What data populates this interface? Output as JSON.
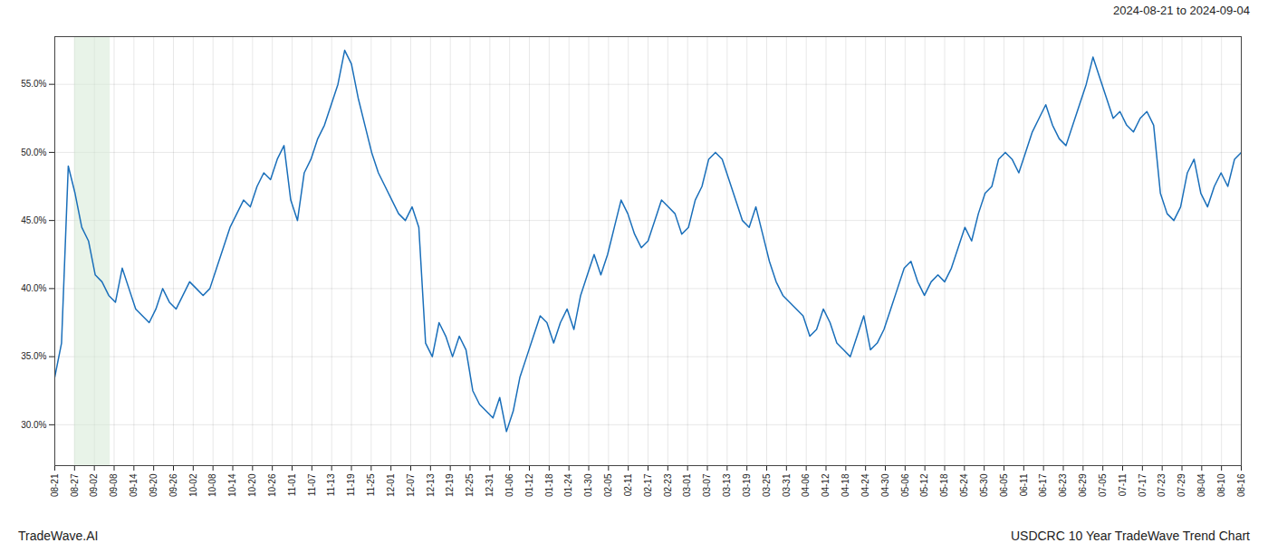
{
  "chart_data": {
    "type": "line",
    "title": "USDCRC 10 Year TradeWave Trend Chart",
    "subtitle": "2024-08-21 to 2024-09-04",
    "annotations": [
      "TradeWave.AI"
    ],
    "color": "#1a6fba",
    "grid": true,
    "xlim": [
      0,
      60
    ],
    "xticks": [
      {
        "value": 0,
        "label": "08-21"
      },
      {
        "value": 1,
        "label": "08-27"
      },
      {
        "value": 2,
        "label": "09-02"
      },
      {
        "value": 3,
        "label": "09-08"
      },
      {
        "value": 4,
        "label": "09-14"
      },
      {
        "value": 5,
        "label": "09-20"
      },
      {
        "value": 6,
        "label": "09-26"
      },
      {
        "value": 7,
        "label": "10-02"
      },
      {
        "value": 8,
        "label": "10-08"
      },
      {
        "value": 9,
        "label": "10-14"
      },
      {
        "value": 10,
        "label": "10-20"
      },
      {
        "value": 11,
        "label": "10-26"
      },
      {
        "value": 12,
        "label": "11-01"
      },
      {
        "value": 13,
        "label": "11-07"
      },
      {
        "value": 14,
        "label": "11-13"
      },
      {
        "value": 15,
        "label": "11-19"
      },
      {
        "value": 16,
        "label": "11-25"
      },
      {
        "value": 17,
        "label": "12-01"
      },
      {
        "value": 18,
        "label": "12-07"
      },
      {
        "value": 19,
        "label": "12-13"
      },
      {
        "value": 20,
        "label": "12-19"
      },
      {
        "value": 21,
        "label": "12-25"
      },
      {
        "value": 22,
        "label": "12-31"
      },
      {
        "value": 23,
        "label": "01-06"
      },
      {
        "value": 24,
        "label": "01-12"
      },
      {
        "value": 25,
        "label": "01-18"
      },
      {
        "value": 26,
        "label": "01-24"
      },
      {
        "value": 27,
        "label": "01-30"
      },
      {
        "value": 28,
        "label": "02-05"
      },
      {
        "value": 29,
        "label": "02-11"
      },
      {
        "value": 30,
        "label": "02-17"
      },
      {
        "value": 31,
        "label": "02-23"
      },
      {
        "value": 32,
        "label": "03-01"
      },
      {
        "value": 33,
        "label": "03-07"
      },
      {
        "value": 34,
        "label": "03-13"
      },
      {
        "value": 35,
        "label": "03-19"
      },
      {
        "value": 36,
        "label": "03-25"
      },
      {
        "value": 37,
        "label": "03-31"
      },
      {
        "value": 38,
        "label": "04-06"
      },
      {
        "value": 39,
        "label": "04-12"
      },
      {
        "value": 40,
        "label": "04-18"
      },
      {
        "value": 41,
        "label": "04-24"
      },
      {
        "value": 42,
        "label": "04-30"
      },
      {
        "value": 43,
        "label": "05-06"
      },
      {
        "value": 44,
        "label": "05-12"
      },
      {
        "value": 45,
        "label": "05-18"
      },
      {
        "value": 46,
        "label": "05-24"
      },
      {
        "value": 47,
        "label": "05-30"
      },
      {
        "value": 48,
        "label": "06-05"
      },
      {
        "value": 49,
        "label": "06-11"
      },
      {
        "value": 50,
        "label": "06-17"
      },
      {
        "value": 51,
        "label": "06-23"
      },
      {
        "value": 52,
        "label": "06-29"
      },
      {
        "value": 53,
        "label": "07-05"
      },
      {
        "value": 54,
        "label": "07-11"
      },
      {
        "value": 55,
        "label": "07-17"
      },
      {
        "value": 56,
        "label": "07-23"
      },
      {
        "value": 57,
        "label": "07-29"
      },
      {
        "value": 58,
        "label": "08-04"
      },
      {
        "value": 59,
        "label": "08-10"
      },
      {
        "value": 60,
        "label": "08-16"
      }
    ],
    "ylim": [
      27.0,
      58.5
    ],
    "yticks": [
      {
        "value": 30.0,
        "label": "30.0%"
      },
      {
        "value": 35.0,
        "label": "35.0%"
      },
      {
        "value": 40.0,
        "label": "40.0%"
      },
      {
        "value": 45.0,
        "label": "45.0%"
      },
      {
        "value": 50.0,
        "label": "50.0%"
      },
      {
        "value": 55.0,
        "label": "55.0%"
      }
    ],
    "highlight": {
      "start": 1,
      "end": 2.8,
      "color": "#d6ead6"
    },
    "values": [
      33.5,
      36.0,
      49.0,
      47.0,
      44.5,
      43.5,
      41.0,
      40.5,
      39.5,
      39.0,
      41.5,
      40.0,
      38.5,
      38.0,
      37.5,
      38.5,
      40.0,
      39.0,
      38.5,
      39.5,
      40.5,
      40.0,
      39.5,
      40.0,
      41.5,
      43.0,
      44.5,
      45.5,
      46.5,
      46.0,
      47.5,
      48.5,
      48.0,
      49.5,
      50.5,
      46.5,
      45.0,
      48.5,
      49.5,
      51.0,
      52.0,
      53.5,
      55.0,
      57.5,
      56.5,
      54.0,
      52.0,
      50.0,
      48.5,
      47.5,
      46.5,
      45.5,
      45.0,
      46.0,
      44.5,
      36.0,
      35.0,
      37.5,
      36.5,
      35.0,
      36.5,
      35.5,
      32.5,
      31.5,
      31.0,
      30.5,
      32.0,
      29.5,
      31.0,
      33.5,
      35.0,
      36.5,
      38.0,
      37.5,
      36.0,
      37.5,
      38.5,
      37.0,
      39.5,
      41.0,
      42.5,
      41.0,
      42.5,
      44.5,
      46.5,
      45.5,
      44.0,
      43.0,
      43.5,
      45.0,
      46.5,
      46.0,
      45.5,
      44.0,
      44.5,
      46.5,
      47.5,
      49.5,
      50.0,
      49.5,
      48.0,
      46.5,
      45.0,
      44.5,
      46.0,
      44.0,
      42.0,
      40.5,
      39.5,
      39.0,
      38.5,
      38.0,
      36.5,
      37.0,
      38.5,
      37.5,
      36.0,
      35.5,
      35.0,
      36.5,
      38.0,
      35.5,
      36.0,
      37.0,
      38.5,
      40.0,
      41.5,
      42.0,
      40.5,
      39.5,
      40.5,
      41.0,
      40.5,
      41.5,
      43.0,
      44.5,
      43.5,
      45.5,
      47.0,
      47.5,
      49.5,
      50.0,
      49.5,
      48.5,
      50.0,
      51.5,
      52.5,
      53.5,
      52.0,
      51.0,
      50.5,
      52.0,
      53.5,
      55.0,
      57.0,
      55.5,
      54.0,
      52.5,
      53.0,
      52.0,
      51.5,
      52.5,
      53.0,
      52.0,
      47.0,
      45.5,
      45.0,
      46.0,
      48.5,
      49.5,
      47.0,
      46.0,
      47.5,
      48.5,
      47.5,
      49.5,
      50.0
    ]
  }
}
